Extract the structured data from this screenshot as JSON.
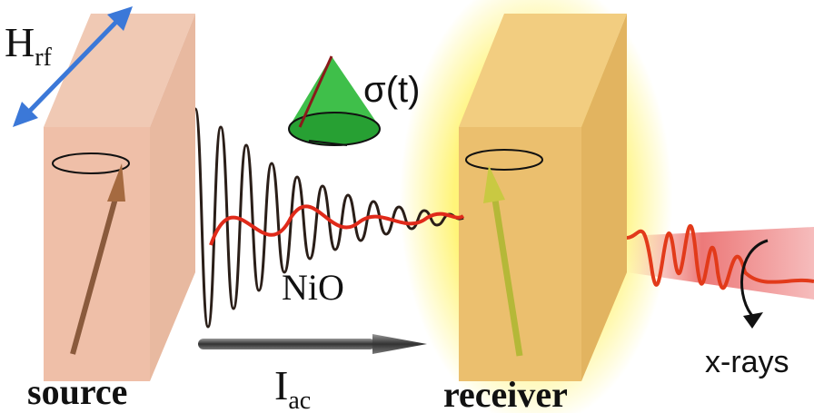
{
  "labels": {
    "field": {
      "main": "H",
      "sub": "rf"
    },
    "precession": "σ(t)",
    "medium": "NiO",
    "source": "source",
    "current": {
      "main": "I",
      "sub": "ac"
    },
    "receiver": "receiver",
    "probe": "x-rays"
  }
}
